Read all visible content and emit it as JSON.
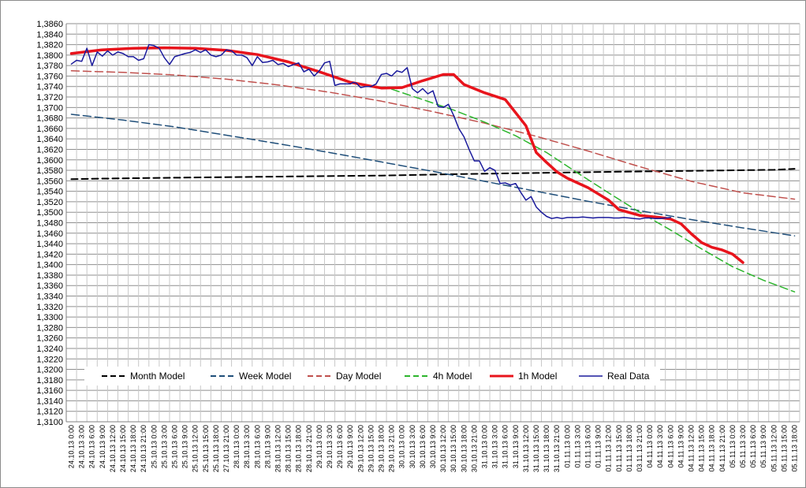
{
  "chart_data": {
    "type": "line",
    "title": "",
    "xlabel": "",
    "ylabel": "",
    "ylim": [
      1.31,
      1.386
    ],
    "y_ticks": [
      "1,3100",
      "1,3120",
      "1,3140",
      "1,3160",
      "1,3180",
      "1,3200",
      "1,3220",
      "1,3240",
      "1,3260",
      "1,3280",
      "1,3300",
      "1,3320",
      "1,3340",
      "1,3360",
      "1,3380",
      "1,3400",
      "1,3420",
      "1,3440",
      "1,3460",
      "1,3480",
      "1,3500",
      "1,3520",
      "1,3540",
      "1,3560",
      "1,3580",
      "1,3600",
      "1,3620",
      "1,3640",
      "1,3660",
      "1,3680",
      "1,3700",
      "1,3720",
      "1,3740",
      "1,3760",
      "1,3780",
      "1,3800",
      "1,3820",
      "1,3840",
      "1,3860"
    ],
    "x_ticks": [
      "24.10.13 0:00",
      "24.10.13 3:00",
      "24.10.13 6:00",
      "24.10.13 9:00",
      "24.10.13 12:00",
      "24.10.13 15:00",
      "24.10.13 18:00",
      "24.10.13 21:00",
      "25.10.13 0:00",
      "25.10.13 3:00",
      "25.10.13 6:00",
      "25.10.13 9:00",
      "25.10.13 12:00",
      "25.10.13 15:00",
      "25.10.13 18:00",
      "27.10.13 21:00",
      "28.10.13 0:00",
      "28.10.13 3:00",
      "28.10.13 6:00",
      "28.10.13 9:00",
      "28.10.13 12:00",
      "28.10.13 15:00",
      "28.10.13 18:00",
      "28.10.13 21:00",
      "29.10.13 0:00",
      "29.10.13 3:00",
      "29.10.13 6:00",
      "29.10.13 9:00",
      "29.10.13 12:00",
      "29.10.13 15:00",
      "29.10.13 18:00",
      "29.10.13 21:00",
      "30.10.13 0:00",
      "30.10.13 3:00",
      "30.10.13 6:00",
      "30.10.13 9:00",
      "30.10.13 12:00",
      "30.10.13 15:00",
      "30.10.13 18:00",
      "30.10.13 21:00",
      "31.10.13 0:00",
      "31.10.13 3:00",
      "31.10.13 6:00",
      "31.10.13 9:00",
      "31.10.13 12:00",
      "31.10.13 15:00",
      "31.10.13 18:00",
      "31.10.13 21:00",
      "01.11.13 0:00",
      "01.11.13 3:00",
      "01.11.13 6:00",
      "01.11.13 9:00",
      "01.11.13 12:00",
      "01.11.13 15:00",
      "01.11.13 18:00",
      "03.11.13 21:00",
      "04.11.13 0:00",
      "04.11.13 3:00",
      "04.11.13 6:00",
      "04.11.13 9:00",
      "04.11.13 12:00",
      "04.11.13 15:00",
      "04.11.13 18:00",
      "04.11.13 21:00",
      "05.11.13 0:00",
      "05.11.13 3:00",
      "05.11.13 6:00",
      "05.11.13 9:00",
      "05.11.13 12:00",
      "05.11.13 15:00",
      "05.11.13 18:00"
    ],
    "grid": true,
    "legend_position": "bottom",
    "series": [
      {
        "name": "Month Model",
        "color": "#000000",
        "dash": "dashed",
        "width": 2,
        "x": [
          0,
          2,
          10,
          20,
          30,
          38,
          45,
          52,
          60,
          68,
          70
        ],
        "y": [
          1.3563,
          1.3564,
          1.3566,
          1.3568,
          1.357,
          1.3573,
          1.3575,
          1.3577,
          1.3579,
          1.3581,
          1.3583
        ]
      },
      {
        "name": "Week Model",
        "color": "#1f4e79",
        "dash": "dashed",
        "width": 1.5,
        "x": [
          0,
          5,
          10,
          15,
          20,
          25,
          30,
          35,
          40,
          45,
          50,
          55,
          60,
          65,
          70
        ],
        "y": [
          1.3687,
          1.3676,
          1.3663,
          1.3647,
          1.3631,
          1.3614,
          1.3596,
          1.3578,
          1.3559,
          1.354,
          1.3521,
          1.3503,
          1.3486,
          1.347,
          1.3455
        ]
      },
      {
        "name": "Day Model",
        "color": "#c0504d",
        "dash": "dashed",
        "width": 1.5,
        "x": [
          0,
          5,
          10,
          15,
          20,
          25,
          30,
          35,
          40,
          45,
          50,
          55,
          60,
          65,
          70
        ],
        "y": [
          1.377,
          1.3767,
          1.3762,
          1.3754,
          1.3743,
          1.3729,
          1.3712,
          1.3692,
          1.367,
          1.3645,
          1.3617,
          1.3587,
          1.3559,
          1.3537,
          1.3525
        ]
      },
      {
        "name": "4h Model",
        "color": "#2db52d",
        "dash": "dashed",
        "width": 1.5,
        "x": [
          31,
          34,
          37,
          40,
          43,
          46,
          49,
          52,
          55,
          58,
          61,
          64,
          67,
          70
        ],
        "y": [
          1.3735,
          1.3715,
          1.3695,
          1.3672,
          1.3646,
          1.3614,
          1.3575,
          1.3537,
          1.35,
          1.3466,
          1.343,
          1.3396,
          1.337,
          1.3348
        ]
      },
      {
        "name": "1h Model",
        "color": "#e8141c",
        "dash": "solid",
        "width": 3.5,
        "x": [
          0,
          3,
          6,
          9,
          12,
          15,
          18,
          21,
          24,
          27,
          30,
          32,
          34,
          36,
          37,
          38,
          40,
          42,
          44,
          45,
          46,
          47,
          48,
          50,
          52,
          53,
          55,
          57,
          58,
          59,
          60,
          61,
          62,
          63,
          64,
          65
        ],
        "y": [
          1.3803,
          1.381,
          1.3813,
          1.3814,
          1.3813,
          1.3809,
          1.3801,
          1.3787,
          1.3768,
          1.3748,
          1.3737,
          1.3738,
          1.3751,
          1.3763,
          1.3763,
          1.3744,
          1.3728,
          1.3715,
          1.3665,
          1.3614,
          1.3595,
          1.3577,
          1.3565,
          1.3547,
          1.3523,
          1.3505,
          1.3494,
          1.349,
          1.3487,
          1.3478,
          1.3459,
          1.3442,
          1.3433,
          1.3428,
          1.342,
          1.3404
        ]
      },
      {
        "name": "Real Data",
        "color": "#1a1a9c",
        "dash": "solid",
        "width": 1.5,
        "x": [
          0,
          0.5,
          1,
          1.5,
          2,
          2.5,
          3,
          3.5,
          4,
          4.5,
          5,
          5.5,
          6,
          6.5,
          7,
          7.5,
          8,
          8.5,
          9,
          9.5,
          10,
          10.5,
          11,
          11.5,
          12,
          12.5,
          13,
          13.5,
          14,
          14.5,
          15,
          15.5,
          16,
          16.5,
          17,
          17.5,
          18,
          18.5,
          19,
          19.5,
          20,
          20.5,
          21,
          21.5,
          22,
          22.5,
          23,
          23.5,
          24,
          24.5,
          25,
          25.5,
          26,
          26.5,
          27,
          27.3,
          27.6,
          28,
          28.5,
          29,
          29.5,
          30,
          30.5,
          31,
          31.5,
          32,
          32.5,
          33,
          33.5,
          34,
          34.5,
          35,
          35.5,
          36,
          36.5,
          37,
          37.5,
          38,
          38.5,
          39,
          39.5,
          40,
          40.5,
          41,
          41.5,
          42,
          42.5,
          43,
          43.5,
          44,
          44.5,
          45,
          45.5,
          46,
          46.5,
          47,
          47.5,
          48,
          48.5,
          49,
          49.5,
          50,
          50.5,
          51,
          51.5,
          52,
          52.5,
          53,
          53.5,
          54,
          54.5,
          55,
          55.5,
          56,
          56.5,
          57,
          57.5,
          58
        ],
        "y": [
          1.3783,
          1.379,
          1.3788,
          1.3813,
          1.378,
          1.3806,
          1.3798,
          1.3808,
          1.38,
          1.3806,
          1.3803,
          1.3797,
          1.3797,
          1.379,
          1.3793,
          1.382,
          1.3818,
          1.3813,
          1.3795,
          1.3782,
          1.3797,
          1.38,
          1.3803,
          1.3805,
          1.381,
          1.3805,
          1.381,
          1.38,
          1.3797,
          1.38,
          1.381,
          1.3808,
          1.38,
          1.38,
          1.3795,
          1.378,
          1.3797,
          1.3786,
          1.3787,
          1.379,
          1.3782,
          1.3784,
          1.3778,
          1.3782,
          1.3785,
          1.3768,
          1.3773,
          1.376,
          1.377,
          1.3785,
          1.3788,
          1.3742,
          1.3745,
          1.3745,
          1.3745,
          1.3748,
          1.3746,
          1.3738,
          1.374,
          1.374,
          1.3745,
          1.3763,
          1.3765,
          1.376,
          1.377,
          1.3767,
          1.3776,
          1.3736,
          1.3728,
          1.3736,
          1.3726,
          1.3732,
          1.3702,
          1.37,
          1.3706,
          1.3685,
          1.366,
          1.3644,
          1.362,
          1.3598,
          1.3598,
          1.3578,
          1.3585,
          1.358,
          1.3555,
          1.3556,
          1.3552,
          1.3555,
          1.3538,
          1.3523,
          1.353,
          1.351,
          1.35,
          1.3492,
          1.3488,
          1.349,
          1.3488,
          1.349,
          1.349,
          1.349,
          1.3491,
          1.349,
          1.3489,
          1.349,
          1.349,
          1.349,
          1.3489,
          1.3489,
          1.349,
          1.3489,
          1.3488,
          1.3487,
          1.3489,
          1.3489,
          1.3488,
          1.3488,
          1.3489,
          1.349
        ]
      }
    ]
  }
}
